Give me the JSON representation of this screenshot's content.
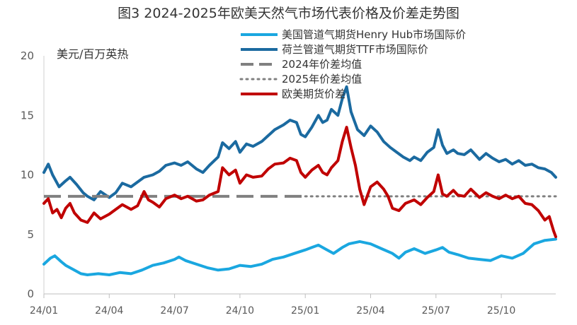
{
  "chart_data": {
    "type": "line",
    "title": "图3 2024-2025年欧美天然气市场代表价格及价差走势图",
    "ylabel": "美元/百万英热",
    "ylim": [
      0,
      20
    ],
    "yticks": [
      "0",
      "5",
      "10",
      "15",
      "20"
    ],
    "x_tick_labels": [
      "24/01",
      "24/04",
      "24/07",
      "24/10",
      "25/01",
      "25/04",
      "25/07",
      "25/10"
    ],
    "x_range_months": [
      0,
      23.5
    ],
    "grid": false,
    "legend_position": "top-right",
    "series": [
      {
        "name": "美国管道气期货Henry Hub市场国际价",
        "color": "#1aa7e0",
        "style": "solid",
        "points": [
          [
            0,
            2.5
          ],
          [
            0.3,
            3.0
          ],
          [
            0.5,
            3.2
          ],
          [
            0.8,
            2.7
          ],
          [
            1.0,
            2.4
          ],
          [
            1.3,
            2.1
          ],
          [
            1.7,
            1.7
          ],
          [
            2.0,
            1.6
          ],
          [
            2.5,
            1.7
          ],
          [
            3.0,
            1.6
          ],
          [
            3.5,
            1.8
          ],
          [
            4.0,
            1.7
          ],
          [
            4.5,
            2.0
          ],
          [
            5.0,
            2.4
          ],
          [
            5.5,
            2.6
          ],
          [
            6.0,
            2.9
          ],
          [
            6.2,
            3.1
          ],
          [
            6.5,
            2.8
          ],
          [
            7.0,
            2.5
          ],
          [
            7.5,
            2.2
          ],
          [
            8.0,
            2.0
          ],
          [
            8.5,
            2.1
          ],
          [
            9.0,
            2.4
          ],
          [
            9.5,
            2.3
          ],
          [
            10.0,
            2.5
          ],
          [
            10.5,
            2.9
          ],
          [
            11.0,
            3.1
          ],
          [
            11.5,
            3.4
          ],
          [
            12.0,
            3.7
          ],
          [
            12.3,
            3.9
          ],
          [
            12.6,
            4.1
          ],
          [
            13.0,
            3.7
          ],
          [
            13.3,
            3.4
          ],
          [
            13.7,
            3.9
          ],
          [
            14.0,
            4.2
          ],
          [
            14.5,
            4.4
          ],
          [
            15.0,
            4.2
          ],
          [
            15.5,
            3.8
          ],
          [
            16.0,
            3.4
          ],
          [
            16.3,
            3.0
          ],
          [
            16.6,
            3.5
          ],
          [
            17.0,
            3.8
          ],
          [
            17.5,
            3.4
          ],
          [
            18.0,
            3.7
          ],
          [
            18.3,
            3.9
          ],
          [
            18.6,
            3.5
          ],
          [
            19.0,
            3.3
          ],
          [
            19.5,
            3.0
          ],
          [
            20.0,
            2.9
          ],
          [
            20.5,
            2.8
          ],
          [
            21.0,
            3.2
          ],
          [
            21.5,
            3.0
          ],
          [
            22.0,
            3.4
          ],
          [
            22.5,
            4.2
          ],
          [
            23.0,
            4.5
          ],
          [
            23.5,
            4.6
          ]
        ]
      },
      {
        "name": "荷兰管道气期货TTF市场国际价",
        "color": "#1b6aa0",
        "style": "solid",
        "points": [
          [
            0,
            10.2
          ],
          [
            0.2,
            10.9
          ],
          [
            0.4,
            10.0
          ],
          [
            0.7,
            9.0
          ],
          [
            1.0,
            9.5
          ],
          [
            1.2,
            9.8
          ],
          [
            1.5,
            9.2
          ],
          [
            1.8,
            8.5
          ],
          [
            2.0,
            8.2
          ],
          [
            2.3,
            7.9
          ],
          [
            2.6,
            8.6
          ],
          [
            3.0,
            8.1
          ],
          [
            3.3,
            8.5
          ],
          [
            3.6,
            9.3
          ],
          [
            4.0,
            9.0
          ],
          [
            4.3,
            9.4
          ],
          [
            4.6,
            9.8
          ],
          [
            5.0,
            10.0
          ],
          [
            5.3,
            10.3
          ],
          [
            5.6,
            10.8
          ],
          [
            6.0,
            11.0
          ],
          [
            6.3,
            10.8
          ],
          [
            6.6,
            11.1
          ],
          [
            7.0,
            10.5
          ],
          [
            7.3,
            10.2
          ],
          [
            7.6,
            10.8
          ],
          [
            8.0,
            11.5
          ],
          [
            8.2,
            12.7
          ],
          [
            8.5,
            12.2
          ],
          [
            8.8,
            12.8
          ],
          [
            9.0,
            11.9
          ],
          [
            9.3,
            12.6
          ],
          [
            9.6,
            12.4
          ],
          [
            10.0,
            12.8
          ],
          [
            10.3,
            13.3
          ],
          [
            10.6,
            13.8
          ],
          [
            11.0,
            14.2
          ],
          [
            11.3,
            14.6
          ],
          [
            11.6,
            14.4
          ],
          [
            11.8,
            13.4
          ],
          [
            12.0,
            13.2
          ],
          [
            12.3,
            14.0
          ],
          [
            12.6,
            15.0
          ],
          [
            12.8,
            14.4
          ],
          [
            13.0,
            14.6
          ],
          [
            13.2,
            15.5
          ],
          [
            13.5,
            15.0
          ],
          [
            13.7,
            16.4
          ],
          [
            13.9,
            17.4
          ],
          [
            14.1,
            15.3
          ],
          [
            14.4,
            13.8
          ],
          [
            14.7,
            13.3
          ],
          [
            15.0,
            14.1
          ],
          [
            15.3,
            13.6
          ],
          [
            15.6,
            12.8
          ],
          [
            15.9,
            12.3
          ],
          [
            16.2,
            11.9
          ],
          [
            16.5,
            11.5
          ],
          [
            16.8,
            11.2
          ],
          [
            17.0,
            11.5
          ],
          [
            17.3,
            11.2
          ],
          [
            17.6,
            11.9
          ],
          [
            17.9,
            12.3
          ],
          [
            18.1,
            13.8
          ],
          [
            18.3,
            12.5
          ],
          [
            18.5,
            11.8
          ],
          [
            18.8,
            12.1
          ],
          [
            19.0,
            11.8
          ],
          [
            19.3,
            11.7
          ],
          [
            19.6,
            12.1
          ],
          [
            20.0,
            11.3
          ],
          [
            20.3,
            11.8
          ],
          [
            20.6,
            11.4
          ],
          [
            20.9,
            11.1
          ],
          [
            21.2,
            11.3
          ],
          [
            21.5,
            10.9
          ],
          [
            21.8,
            11.2
          ],
          [
            22.1,
            10.8
          ],
          [
            22.4,
            10.9
          ],
          [
            22.7,
            10.6
          ],
          [
            23.0,
            10.5
          ],
          [
            23.3,
            10.2
          ],
          [
            23.5,
            9.8
          ]
        ]
      },
      {
        "name": "2024年价差均值",
        "color": "#808080",
        "style": "dashed",
        "value": 8.2,
        "range_months": [
          0,
          12
        ]
      },
      {
        "name": "2025年价差均值",
        "color": "#808080",
        "style": "dotted",
        "value": 8.2,
        "range_months": [
          12,
          23.5
        ]
      },
      {
        "name": "欧美期货价差",
        "color": "#c00000",
        "style": "solid",
        "points": [
          [
            0,
            7.6
          ],
          [
            0.2,
            8.0
          ],
          [
            0.4,
            6.8
          ],
          [
            0.6,
            7.1
          ],
          [
            0.8,
            6.4
          ],
          [
            1.0,
            7.2
          ],
          [
            1.2,
            7.6
          ],
          [
            1.4,
            6.8
          ],
          [
            1.7,
            6.2
          ],
          [
            2.0,
            6.0
          ],
          [
            2.3,
            6.8
          ],
          [
            2.6,
            6.3
          ],
          [
            3.0,
            6.7
          ],
          [
            3.3,
            7.1
          ],
          [
            3.6,
            7.5
          ],
          [
            4.0,
            7.1
          ],
          [
            4.3,
            7.4
          ],
          [
            4.6,
            8.6
          ],
          [
            4.8,
            7.9
          ],
          [
            5.0,
            7.7
          ],
          [
            5.3,
            7.3
          ],
          [
            5.6,
            8.0
          ],
          [
            6.0,
            8.3
          ],
          [
            6.3,
            8.0
          ],
          [
            6.6,
            8.2
          ],
          [
            7.0,
            7.8
          ],
          [
            7.3,
            7.9
          ],
          [
            7.6,
            8.3
          ],
          [
            8.0,
            8.6
          ],
          [
            8.2,
            10.6
          ],
          [
            8.5,
            10.0
          ],
          [
            8.8,
            10.4
          ],
          [
            9.0,
            9.3
          ],
          [
            9.3,
            10.0
          ],
          [
            9.6,
            9.8
          ],
          [
            10.0,
            9.9
          ],
          [
            10.3,
            10.5
          ],
          [
            10.6,
            10.9
          ],
          [
            11.0,
            11.0
          ],
          [
            11.3,
            11.4
          ],
          [
            11.6,
            11.2
          ],
          [
            11.8,
            10.2
          ],
          [
            12.0,
            9.8
          ],
          [
            12.3,
            10.4
          ],
          [
            12.6,
            10.8
          ],
          [
            12.8,
            10.2
          ],
          [
            13.0,
            10.0
          ],
          [
            13.2,
            10.6
          ],
          [
            13.5,
            11.2
          ],
          [
            13.7,
            12.8
          ],
          [
            13.9,
            14.0
          ],
          [
            14.1,
            12.3
          ],
          [
            14.3,
            10.8
          ],
          [
            14.5,
            8.8
          ],
          [
            14.7,
            7.5
          ],
          [
            15.0,
            9.0
          ],
          [
            15.3,
            9.4
          ],
          [
            15.6,
            8.8
          ],
          [
            15.8,
            8.2
          ],
          [
            16.0,
            7.2
          ],
          [
            16.3,
            7.0
          ],
          [
            16.6,
            7.6
          ],
          [
            17.0,
            7.9
          ],
          [
            17.3,
            7.5
          ],
          [
            17.6,
            8.1
          ],
          [
            17.9,
            8.6
          ],
          [
            18.1,
            10.0
          ],
          [
            18.3,
            8.4
          ],
          [
            18.5,
            8.2
          ],
          [
            18.8,
            8.7
          ],
          [
            19.0,
            8.3
          ],
          [
            19.3,
            8.2
          ],
          [
            19.6,
            8.8
          ],
          [
            20.0,
            8.1
          ],
          [
            20.3,
            8.5
          ],
          [
            20.6,
            8.2
          ],
          [
            20.9,
            8.0
          ],
          [
            21.2,
            8.3
          ],
          [
            21.5,
            8.0
          ],
          [
            21.8,
            8.2
          ],
          [
            22.1,
            7.6
          ],
          [
            22.4,
            7.5
          ],
          [
            22.7,
            7.0
          ],
          [
            23.0,
            6.2
          ],
          [
            23.2,
            6.5
          ],
          [
            23.4,
            5.3
          ],
          [
            23.5,
            4.8
          ]
        ]
      }
    ]
  }
}
